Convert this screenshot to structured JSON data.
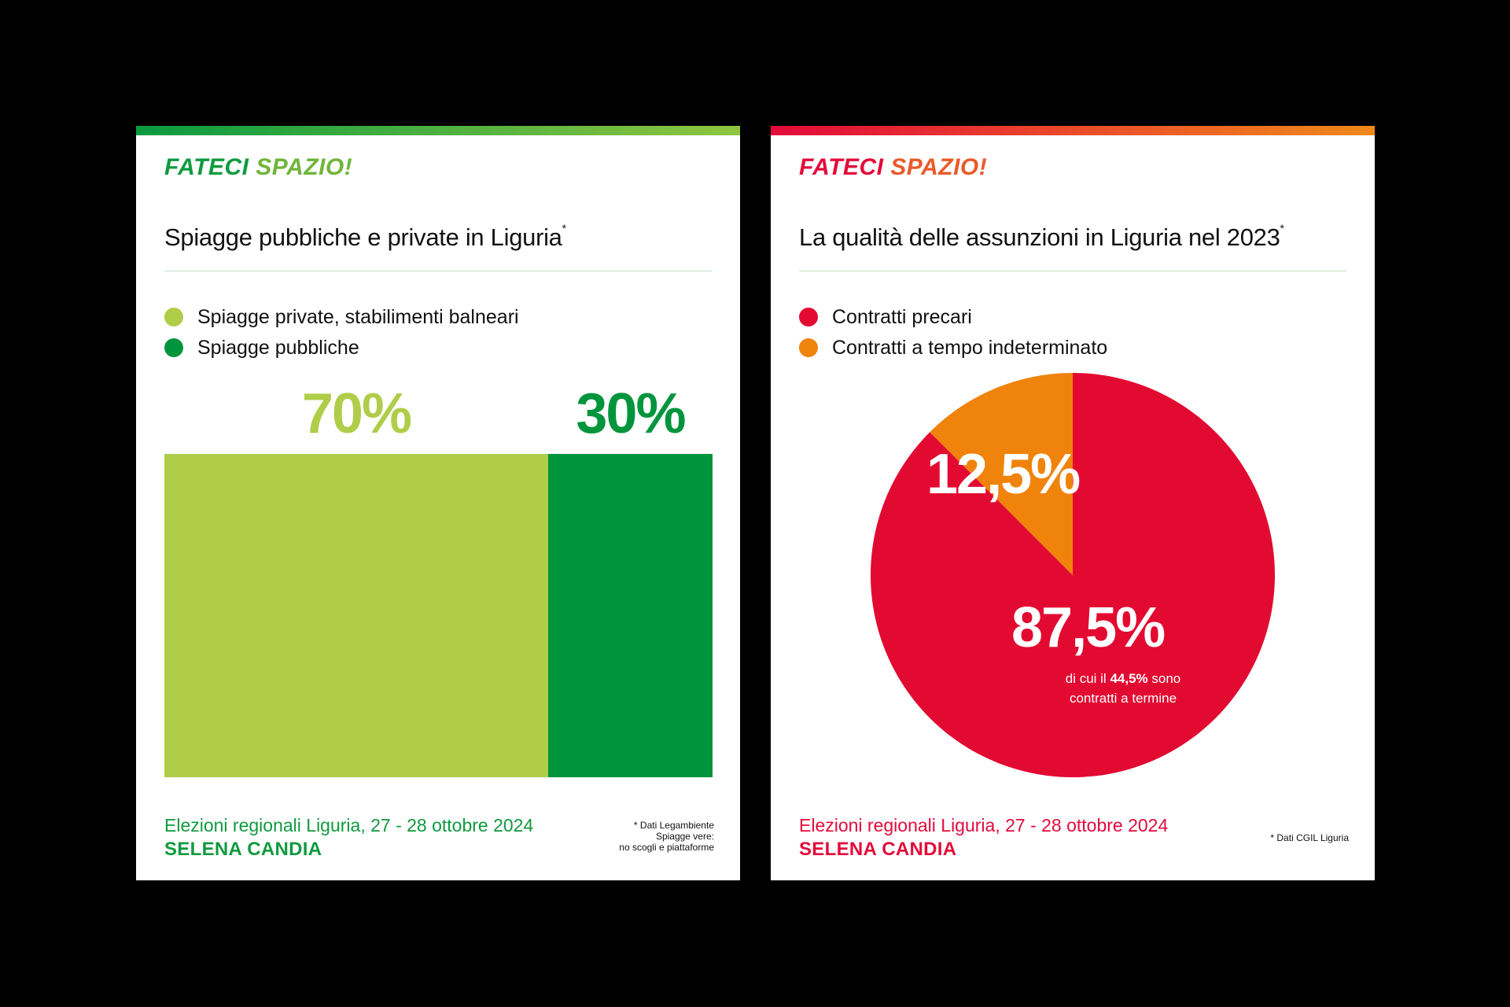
{
  "colors": {
    "green_light": "#b0cd4a",
    "green_dark": "#00953d",
    "red": "#e30a32",
    "orange": "#f0830b"
  },
  "left_card": {
    "brand_word1": "FATECI",
    "brand_word2": "SPAZIO!",
    "title": "Spiagge pubbliche e private in Liguria",
    "title_mark": "*",
    "legend": [
      {
        "label": "Spiagge private, stabilimenti balneari",
        "color": "#b0cd4a"
      },
      {
        "label": "Spiagge pubbliche",
        "color": "#00953d"
      }
    ],
    "footer_line": "Elezioni regionali Liguria, 27 - 28 ottobre 2024",
    "footer_name": "SELENA CANDIA",
    "source_lines": [
      "* Dati Legambiente",
      "Spiagge vere:",
      "no scogli e piattaforme"
    ]
  },
  "right_card": {
    "brand_word1": "FATECI",
    "brand_word2": "SPAZIO!",
    "title": "La qualità delle assunzioni in Liguria nel 2023",
    "title_mark": "*",
    "legend": [
      {
        "label": "Contratti precari",
        "color": "#e30a32"
      },
      {
        "label": "Contratti a tempo indeterminato",
        "color": "#f0830b"
      }
    ],
    "note_pre": "di cui il ",
    "note_bold": "44,5%",
    "note_post": " sono",
    "note_line2": "contratti a termine",
    "footer_line": "Elezioni regionali Liguria, 27 - 28 ottobre 2024",
    "footer_name": "SELENA CANDIA",
    "source_lines": [
      "* Dati CGIL Liguria"
    ]
  },
  "chart_data": [
    {
      "type": "bar",
      "orientation": "horizontal-stacked",
      "title": "Spiagge pubbliche e private in Liguria",
      "categories": [
        "Spiagge private, stabilimenti balneari",
        "Spiagge pubbliche"
      ],
      "values": [
        70,
        30
      ],
      "data_labels": [
        "70%",
        "30%"
      ],
      "colors": [
        "#b0cd4a",
        "#00953d"
      ],
      "legend": "top-left"
    },
    {
      "type": "pie",
      "title": "La qualità delle assunzioni in Liguria nel 2023",
      "categories": [
        "Contratti precari",
        "Contratti a tempo indeterminato"
      ],
      "values": [
        87.5,
        12.5
      ],
      "data_labels": [
        "87,5%",
        "12,5%"
      ],
      "colors": [
        "#e30a32",
        "#f0830b"
      ],
      "legend": "top-left"
    }
  ]
}
